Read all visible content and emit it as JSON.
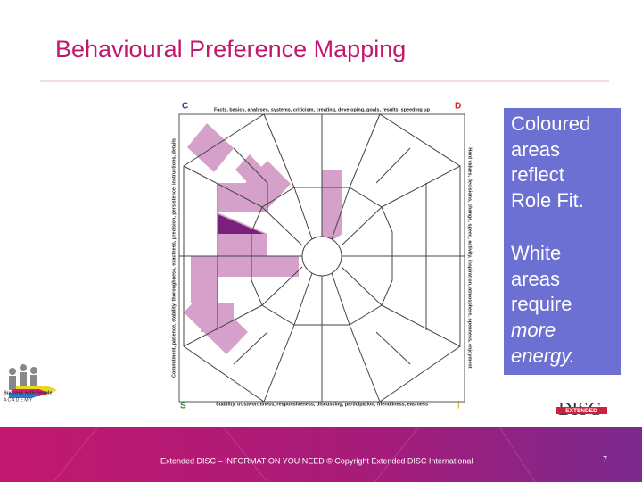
{
  "header": {
    "title": "Behavioural Preference Mapping"
  },
  "diagram": {
    "corners": {
      "top_left": "C",
      "top_right": "D",
      "bottom_left": "S",
      "bottom_right": "I"
    },
    "edges": {
      "top": "Facts, basics, analyses, systems, criticism, creating, developing, goals, results, speeding up",
      "right": "Hard values, decisions, change, speed, activity, inspiration, atmosphere, openness, enjoyment",
      "bottom": "Stability, trustworthiness, responsiveness, discussing, participation, friendliness, easiness",
      "left": "Commitment, patience, stability, thoroughness, exactness, precision, persistence, instructions, details"
    }
  },
  "callout": {
    "lines": [
      "Coloured",
      "areas",
      "reflect",
      "Role Fit.",
      "White",
      "areas",
      "require",
      "more",
      "energy."
    ]
  },
  "logos": {
    "academy": {
      "line1": "Success with People",
      "line2": "A C A D E M Y"
    },
    "disc": {
      "word": "DISC",
      "band": "EXTENDED"
    }
  },
  "footer": {
    "text": "Extended DISC – INFORMATION YOU NEED  © Copyright Extended DISC International",
    "page": "7"
  }
}
